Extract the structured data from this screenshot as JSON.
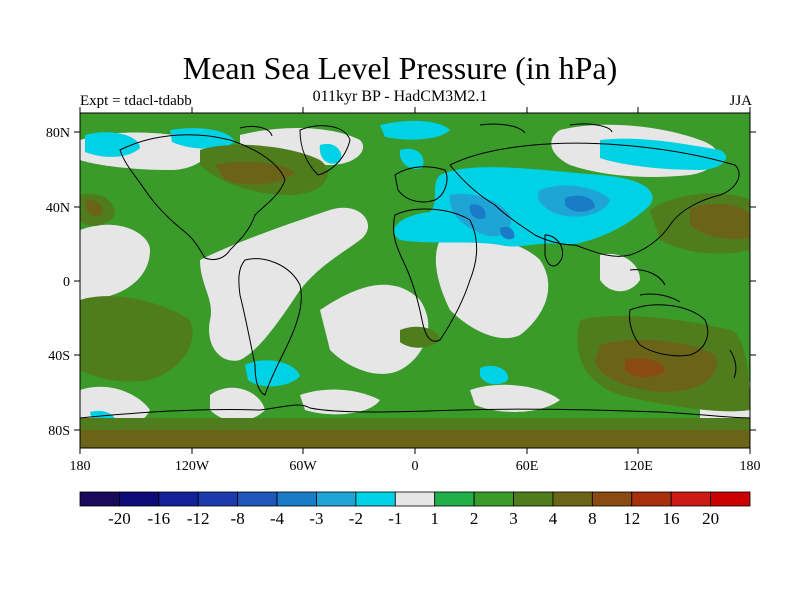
{
  "header": {
    "title": "Mean Sea Level Pressure (in hPa)",
    "subtitle": "011kyr BP - HadCM3M2.1",
    "experiment": "Expt = tdacl-tdabb",
    "season": "JJA"
  },
  "axes": {
    "lat_ticks": [
      "80N",
      "40N",
      "0",
      "40S",
      "80S"
    ],
    "lon_ticks": [
      "180",
      "120W",
      "60W",
      "0",
      "60E",
      "120E",
      "180"
    ]
  },
  "colorbar": {
    "labels": [
      "-20",
      "-16",
      "-12",
      "-8",
      "-4",
      "-3",
      "-2",
      "-1",
      "1",
      "2",
      "3",
      "4",
      "8",
      "12",
      "16",
      "20"
    ],
    "colors": [
      "#1a0a5c",
      "#0d0b78",
      "#12209a",
      "#1a3aad",
      "#1f58b8",
      "#1a7cc6",
      "#1fa4d6",
      "#00d2e6",
      "#e6e6e6",
      "#1fb04a",
      "#3a9a2a",
      "#4f7d1e",
      "#6b6418",
      "#8a4b12",
      "#a8300c",
      "#cc1a14",
      "#cc0000"
    ]
  },
  "chart_data": {
    "type": "heatmap",
    "title": "Mean Sea Level Pressure (in hPa)",
    "subtitle": "011kyr BP - HadCM3M2.1",
    "variable": "mean sea level pressure anomaly",
    "units": "hPa",
    "experiment": "tdacl-tdabb",
    "season": "JJA",
    "xlim": [
      -180,
      180
    ],
    "ylim": [
      -90,
      90
    ],
    "levels": [
      -20,
      -16,
      -12,
      -8,
      -4,
      -3,
      -2,
      -1,
      1,
      2,
      3,
      4,
      8,
      12,
      16,
      20
    ],
    "features": [
      {
        "region": "South Pacific Ocean",
        "value_range": "3 to 4",
        "sign": "positive"
      },
      {
        "region": "Southern Indian Ocean",
        "value_range": "4 to 8",
        "sign": "positive"
      },
      {
        "region": "Southern Ocean near Antarctica",
        "value_range": "3 to 4",
        "sign": "positive"
      },
      {
        "region": "Canadian Arctic / Greenland",
        "value_range": "3 to 4",
        "sign": "positive"
      },
      {
        "region": "North Africa / Middle East / Central Asia",
        "value_range": "-4 to -2",
        "sign": "negative"
      },
      {
        "region": "Southern South America",
        "value_range": "-2 to -1",
        "sign": "negative"
      },
      {
        "region": "Arctic Ocean",
        "value_range": "-2 to -1",
        "sign": "negative"
      },
      {
        "region": "Tropical oceans",
        "value_range": "1 to 3",
        "sign": "positive"
      }
    ]
  }
}
